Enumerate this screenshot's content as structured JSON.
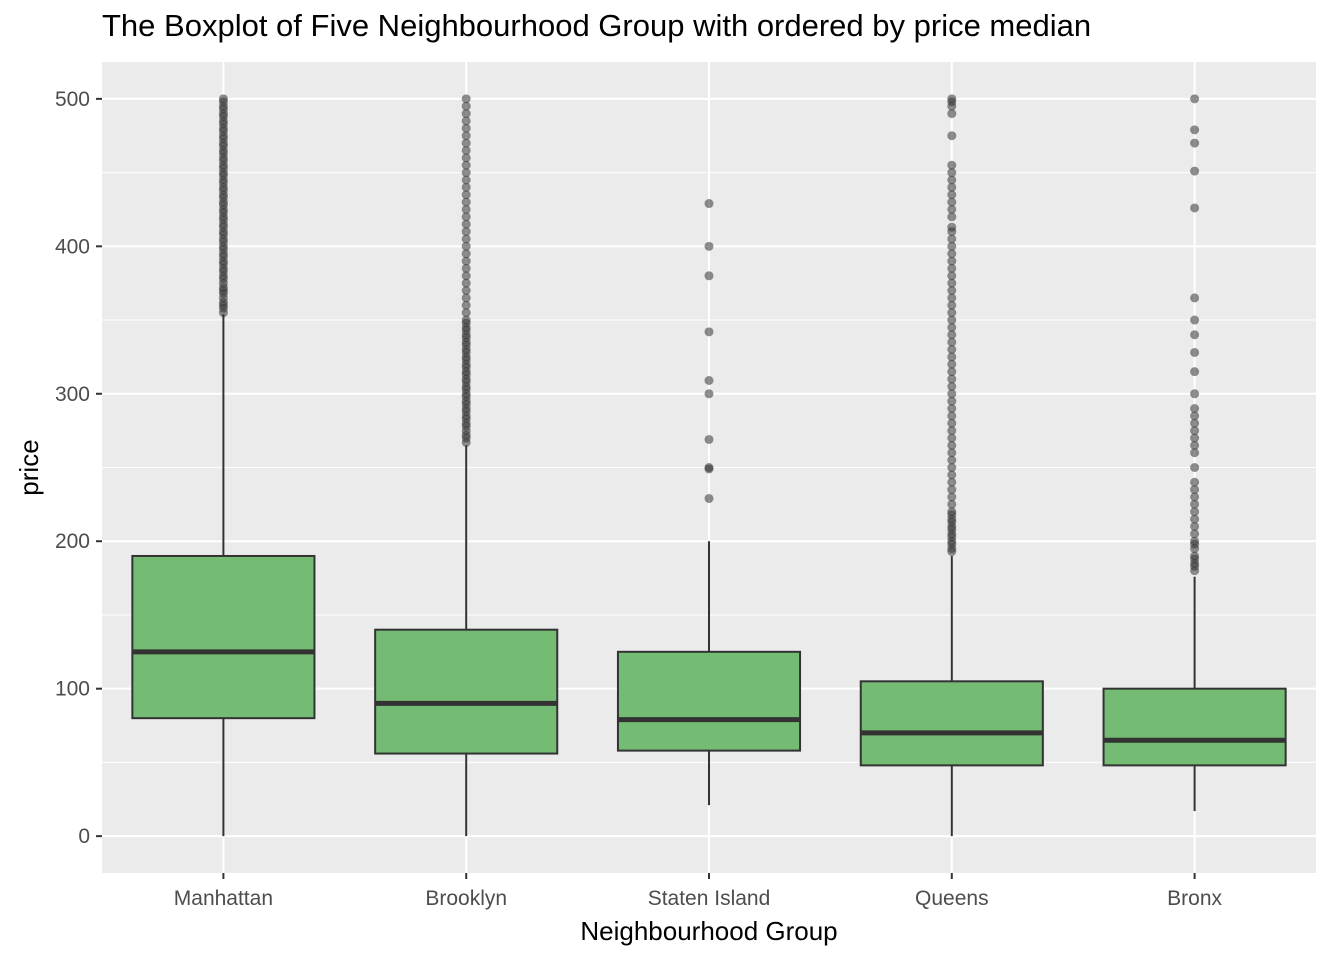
{
  "chart_data": {
    "type": "boxplot",
    "title": "The Boxplot of Five Neighbourhood Group with ordered by price median",
    "xlabel": "Neighbourhood Group",
    "ylabel": "price",
    "ylim": [
      -25,
      525
    ],
    "yticks": [
      0,
      100,
      200,
      300,
      400,
      500
    ],
    "grid": true,
    "legend": "none",
    "box_color": "#74bb73",
    "box_outline": "#333333",
    "panel_background": "#ebebeb",
    "outlier_color": "#333333",
    "categories": [
      "Manhattan",
      "Brooklyn",
      "Staten Island",
      "Queens",
      "Bronx"
    ],
    "boxes": [
      {
        "category": "Manhattan",
        "whisker_low": 0,
        "q1": 80,
        "median": 125,
        "q3": 190,
        "whisker_high": 354,
        "outliers": [
          355,
          358,
          360,
          362,
          365,
          368,
          370,
          372,
          375,
          378,
          380,
          383,
          385,
          388,
          390,
          393,
          395,
          398,
          400,
          403,
          405,
          408,
          410,
          413,
          415,
          418,
          420,
          423,
          425,
          428,
          430,
          433,
          435,
          438,
          440,
          443,
          445,
          448,
          450,
          453,
          455,
          458,
          460,
          463,
          465,
          468,
          470,
          473,
          475,
          478,
          480,
          483,
          485,
          488,
          490,
          493,
          495,
          498,
          500
        ]
      },
      {
        "category": "Brooklyn",
        "whisker_low": 0,
        "q1": 56,
        "median": 90,
        "q3": 140,
        "whisker_high": 265,
        "outliers": [
          267,
          270,
          272,
          275,
          278,
          280,
          283,
          285,
          288,
          290,
          293,
          295,
          298,
          300,
          303,
          305,
          308,
          310,
          313,
          315,
          318,
          320,
          323,
          325,
          328,
          330,
          333,
          335,
          338,
          340,
          343,
          345,
          348,
          350,
          355,
          360,
          365,
          370,
          375,
          380,
          385,
          390,
          395,
          400,
          405,
          410,
          415,
          420,
          425,
          430,
          435,
          440,
          445,
          450,
          455,
          460,
          465,
          470,
          475,
          480,
          485,
          490,
          495,
          500
        ]
      },
      {
        "category": "Staten Island",
        "whisker_low": 21,
        "q1": 58,
        "median": 79,
        "q3": 125,
        "whisker_high": 200,
        "outliers": [
          229,
          249,
          250,
          269,
          300,
          309,
          342,
          380,
          400,
          429
        ]
      },
      {
        "category": "Queens",
        "whisker_low": 0,
        "q1": 48,
        "median": 70,
        "q3": 105,
        "whisker_high": 190,
        "outliers": [
          193,
          195,
          198,
          200,
          203,
          205,
          208,
          210,
          213,
          215,
          218,
          220,
          225,
          230,
          235,
          240,
          245,
          250,
          255,
          260,
          265,
          270,
          275,
          280,
          285,
          290,
          295,
          300,
          305,
          310,
          315,
          320,
          325,
          330,
          335,
          340,
          345,
          350,
          355,
          360,
          365,
          370,
          375,
          380,
          385,
          390,
          395,
          400,
          405,
          410,
          413,
          420,
          425,
          430,
          435,
          440,
          445,
          450,
          455,
          475,
          490,
          495,
          498,
          500
        ]
      },
      {
        "category": "Bronx",
        "whisker_low": 17,
        "q1": 48,
        "median": 65,
        "q3": 100,
        "whisker_high": 176,
        "outliers": [
          180,
          183,
          185,
          188,
          190,
          195,
          198,
          200,
          205,
          210,
          215,
          220,
          225,
          230,
          235,
          240,
          250,
          260,
          265,
          270,
          275,
          280,
          285,
          290,
          300,
          315,
          328,
          340,
          350,
          365,
          426,
          451,
          470,
          479,
          500
        ]
      }
    ]
  }
}
